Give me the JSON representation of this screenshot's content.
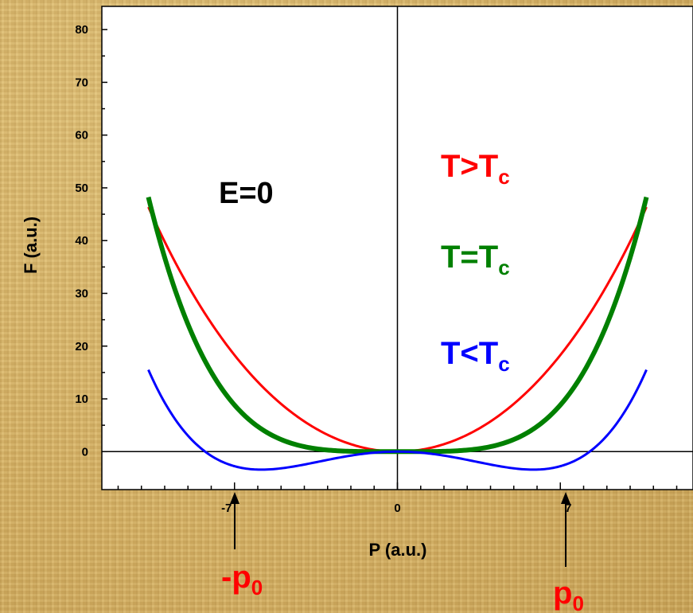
{
  "chart_data": {
    "type": "line",
    "xlabel": "P (a.u.)",
    "ylabel": "F (a.u.)",
    "xlim": [
      -12.7,
      12.7
    ],
    "ylim": [
      -7.2,
      84.4
    ],
    "x_ticks": [
      -7,
      0,
      7
    ],
    "y_ticks": [
      0,
      10,
      20,
      30,
      40,
      50,
      60,
      70,
      80
    ],
    "grid": false,
    "series": [
      {
        "name": "T>Tc",
        "color": "#ff0000",
        "line_width": 3,
        "x_range": [
          -10.7,
          10.7
        ],
        "a": 0.35,
        "b": 0.00048
      },
      {
        "name": "T=Tc",
        "color": "#008000",
        "line_width": 6,
        "x_range": [
          -10.7,
          10.7
        ],
        "a": 0.0,
        "b": 0.00368
      },
      {
        "name": "T<Tc",
        "color": "#0000ff",
        "line_width": 3,
        "x_range": [
          -10.7,
          10.7
        ],
        "a": -0.2,
        "b": 0.00293
      }
    ],
    "annotations": {
      "condition": "E=0",
      "series_labels": [
        {
          "base": "T>T",
          "sub": "c",
          "color": "#ff0000"
        },
        {
          "base": "T=T",
          "sub": "c",
          "color": "#008000"
        },
        {
          "base": "T<T",
          "sub": "c",
          "color": "#0000ff"
        }
      ],
      "minima": [
        {
          "base": "-p",
          "sub": "0",
          "x": -7.3,
          "color": "#ff0000"
        },
        {
          "base": "p",
          "sub": "0",
          "x": 7.3,
          "color": "#ff0000"
        }
      ]
    }
  }
}
